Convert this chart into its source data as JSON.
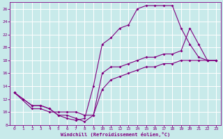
{
  "background_color": "#c8eaea",
  "grid_color": "#ffffff",
  "line_color": "#800080",
  "xlabel": "Windchill (Refroidissement éolien,°C)",
  "xlim": [
    -0.5,
    23.5
  ],
  "ylim": [
    8,
    27
  ],
  "yticks": [
    8,
    10,
    12,
    14,
    16,
    18,
    20,
    22,
    24,
    26
  ],
  "xticks": [
    0,
    1,
    2,
    3,
    4,
    5,
    6,
    7,
    8,
    9,
    10,
    11,
    12,
    13,
    14,
    15,
    16,
    17,
    18,
    19,
    20,
    21,
    22,
    23
  ],
  "line1_x": [
    0,
    1,
    2,
    3,
    4,
    5,
    6,
    7,
    8,
    9,
    10,
    11,
    12,
    13,
    14,
    15,
    16,
    17,
    18,
    19,
    20,
    21,
    22,
    23
  ],
  "line1_y": [
    13,
    12,
    11,
    11,
    10.5,
    9.5,
    9,
    8.7,
    9,
    14,
    20.5,
    21.5,
    23,
    23.5,
    26,
    26.5,
    26.5,
    26.5,
    26.5,
    23,
    20.5,
    18.5,
    18,
    18
  ],
  "line2_x": [
    0,
    2,
    3,
    4,
    5,
    6,
    7,
    8,
    9,
    10,
    11,
    12,
    13,
    14,
    15,
    16,
    17,
    18,
    19,
    20,
    21,
    22,
    23
  ],
  "line2_y": [
    13,
    10.5,
    10.5,
    10,
    10,
    10,
    10,
    9.5,
    9.5,
    13.5,
    15,
    15.5,
    16,
    16.5,
    17,
    17,
    17.5,
    17.5,
    18,
    18,
    18,
    18,
    18
  ],
  "line3_x": [
    0,
    1,
    2,
    3,
    4,
    5,
    6,
    7,
    8,
    9,
    10,
    11,
    12,
    13,
    14,
    15,
    16,
    17,
    18,
    19,
    20,
    21,
    22,
    23
  ],
  "line3_y": [
    13,
    12,
    11,
    11,
    10.5,
    9.5,
    9.5,
    9,
    8.5,
    9.5,
    16,
    17,
    17,
    17.5,
    18,
    18.5,
    18.5,
    19,
    19,
    19.5,
    23,
    20.5,
    18,
    18
  ]
}
